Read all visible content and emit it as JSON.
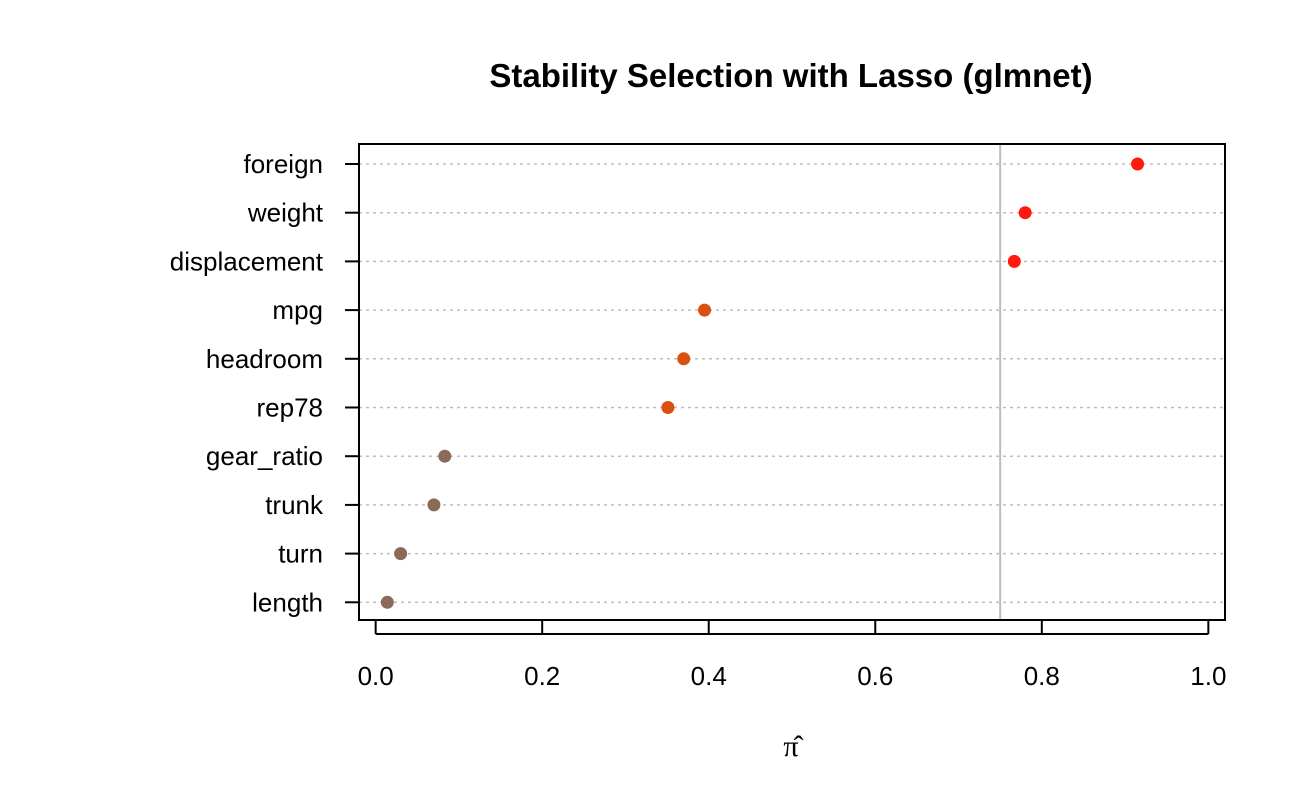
{
  "chart_data": {
    "type": "scatter",
    "title": "Stability Selection with Lasso (glmnet)",
    "xlabel": "π̂",
    "xlim": [
      -0.02,
      1.02
    ],
    "x_ticks": [
      "0.0",
      "0.2",
      "0.4",
      "0.6",
      "0.8",
      "1.0"
    ],
    "x_tick_values": [
      0.0,
      0.2,
      0.4,
      0.6,
      0.8,
      1.0
    ],
    "threshold": 0.75,
    "grid": true,
    "categories": [
      "foreign",
      "weight",
      "displacement",
      "mpg",
      "headroom",
      "rep78",
      "gear_ratio",
      "trunk",
      "turn",
      "length"
    ],
    "values": [
      0.915,
      0.78,
      0.767,
      0.395,
      0.37,
      0.351,
      0.083,
      0.07,
      0.03,
      0.014
    ],
    "colors": [
      "#ff1a0d",
      "#ff1a0d",
      "#ff1a0d",
      "#d9510f",
      "#d9510f",
      "#d9510f",
      "#8c6a5a",
      "#8c6a5a",
      "#8c6a5a",
      "#8c6a5a"
    ]
  }
}
